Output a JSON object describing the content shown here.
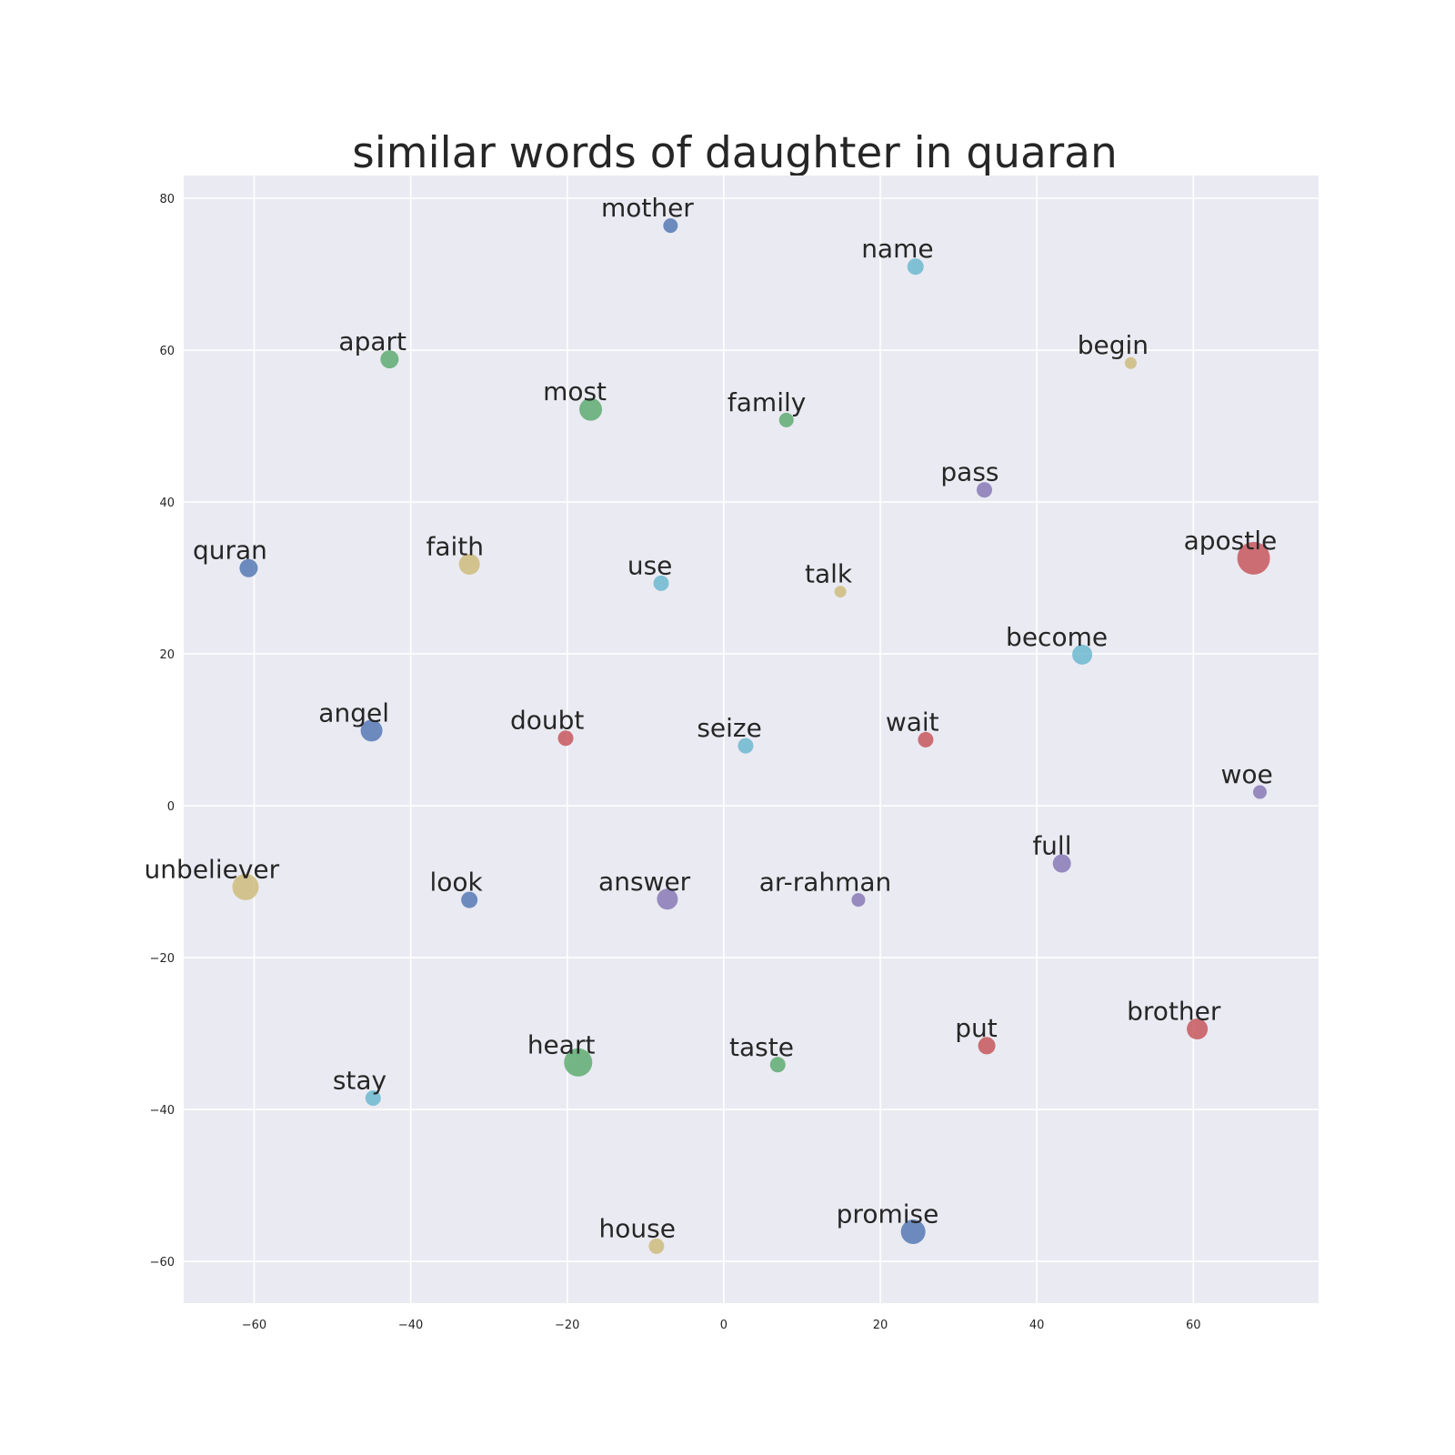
{
  "chart_data": {
    "type": "scatter",
    "title": "similar words of daughter in quaran",
    "xlabel": "",
    "ylabel": "",
    "xlim": [
      -69,
      76
    ],
    "ylim": [
      -65.5,
      83
    ],
    "xticks": [
      -60,
      -40,
      -20,
      0,
      20,
      40,
      60
    ],
    "yticks": [
      -60,
      -40,
      -20,
      0,
      20,
      40,
      60,
      80
    ],
    "xtick_labels": [
      "−60",
      "−40",
      "−20",
      "0",
      "20",
      "40",
      "60"
    ],
    "ytick_labels": [
      "−60",
      "−40",
      "−20",
      "0",
      "20",
      "40",
      "60",
      "80"
    ],
    "grid": true,
    "background": "#eaeaf2",
    "palette": {
      "blue": "#4c72b0",
      "green": "#55a868",
      "red": "#c44e52",
      "purple": "#8172b2",
      "yellow": "#ccb974",
      "cyan": "#64b5cd"
    },
    "points": [
      {
        "label": "mother",
        "x": -6.8,
        "y": 76.4,
        "size": 8,
        "color": "blue"
      },
      {
        "label": "name",
        "x": 24.5,
        "y": 71.0,
        "size": 9,
        "color": "cyan"
      },
      {
        "label": "apart",
        "x": -42.7,
        "y": 58.8,
        "size": 10,
        "color": "green"
      },
      {
        "label": "begin",
        "x": 52.0,
        "y": 58.3,
        "size": 6.5,
        "color": "yellow"
      },
      {
        "label": "most",
        "x": -17.0,
        "y": 52.2,
        "size": 12.5,
        "color": "green"
      },
      {
        "label": "family",
        "x": 8.0,
        "y": 50.8,
        "size": 8,
        "color": "green"
      },
      {
        "label": "pass",
        "x": 33.3,
        "y": 41.6,
        "size": 8.5,
        "color": "purple"
      },
      {
        "label": "quran",
        "x": -60.7,
        "y": 31.3,
        "size": 10,
        "color": "blue"
      },
      {
        "label": "faith",
        "x": -32.5,
        "y": 31.8,
        "size": 11.5,
        "color": "yellow"
      },
      {
        "label": "apostle",
        "x": 67.7,
        "y": 32.6,
        "size": 18,
        "color": "red"
      },
      {
        "label": "use",
        "x": -8.0,
        "y": 29.3,
        "size": 8.5,
        "color": "cyan"
      },
      {
        "label": "talk",
        "x": 14.9,
        "y": 28.2,
        "size": 6.5,
        "color": "yellow"
      },
      {
        "label": "become",
        "x": 45.8,
        "y": 19.9,
        "size": 11,
        "color": "cyan"
      },
      {
        "label": "angel",
        "x": -45.0,
        "y": 9.9,
        "size": 12,
        "color": "blue"
      },
      {
        "label": "doubt",
        "x": -20.2,
        "y": 8.9,
        "size": 8.5,
        "color": "red"
      },
      {
        "label": "seize",
        "x": 2.8,
        "y": 7.9,
        "size": 8.5,
        "color": "cyan"
      },
      {
        "label": "wait",
        "x": 25.8,
        "y": 8.7,
        "size": 8.5,
        "color": "red"
      },
      {
        "label": "woe",
        "x": 68.5,
        "y": 1.8,
        "size": 7.5,
        "color": "purple"
      },
      {
        "label": "full",
        "x": 43.2,
        "y": -7.6,
        "size": 10,
        "color": "purple"
      },
      {
        "label": "unbeliever",
        "x": -61.1,
        "y": -10.7,
        "size": 14.5,
        "color": "yellow"
      },
      {
        "label": "look",
        "x": -32.5,
        "y": -12.4,
        "size": 9,
        "color": "blue"
      },
      {
        "label": "answer",
        "x": -7.2,
        "y": -12.3,
        "size": 11.5,
        "color": "purple"
      },
      {
        "label": "ar-rahman",
        "x": 17.2,
        "y": -12.4,
        "size": 7.5,
        "color": "purple"
      },
      {
        "label": "brother",
        "x": 60.5,
        "y": -29.4,
        "size": 11.5,
        "color": "red"
      },
      {
        "label": "put",
        "x": 33.6,
        "y": -31.6,
        "size": 9.5,
        "color": "red"
      },
      {
        "label": "heart",
        "x": -18.6,
        "y": -33.8,
        "size": 15.5,
        "color": "green"
      },
      {
        "label": "taste",
        "x": 6.9,
        "y": -34.1,
        "size": 8.5,
        "color": "green"
      },
      {
        "label": "stay",
        "x": -44.8,
        "y": -38.5,
        "size": 8.5,
        "color": "cyan"
      },
      {
        "label": "house",
        "x": -8.6,
        "y": -58.0,
        "size": 8.5,
        "color": "yellow"
      },
      {
        "label": "promise",
        "x": 24.2,
        "y": -56.1,
        "size": 13.5,
        "color": "blue"
      }
    ]
  }
}
